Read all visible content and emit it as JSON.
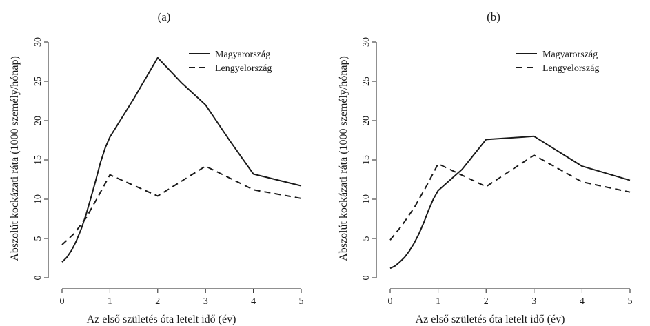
{
  "chart_data": [
    {
      "type": "line",
      "title": "(a)",
      "xlabel": "Az első születés óta letelt idő (év)",
      "ylabel": "Abszolút kockázati ráta  (1000 személy/hónap)",
      "xlim": [
        0,
        5
      ],
      "ylim": [
        0,
        30
      ],
      "xticks": [
        "0",
        "1",
        "2",
        "3",
        "4",
        "5"
      ],
      "yticks": [
        "0",
        "5",
        "10",
        "15",
        "20",
        "25",
        "30"
      ],
      "grid": false,
      "legend_position": "top-right",
      "series": [
        {
          "name": "Magyarország",
          "style": "solid",
          "x": [
            0,
            0.1,
            0.2,
            0.3,
            0.4,
            0.5,
            0.6,
            0.7,
            0.8,
            0.9,
            1,
            1.5,
            2,
            2.5,
            3,
            3.5,
            4,
            5
          ],
          "y": [
            2.0,
            2.6,
            3.5,
            4.7,
            6.2,
            8.0,
            10.1,
            12.3,
            14.6,
            16.5,
            17.9,
            22.8,
            28.0,
            24.8,
            22.0,
            17.5,
            13.2,
            11.7
          ]
        },
        {
          "name": "Lengyelország",
          "style": "dashed",
          "x": [
            0,
            0.25,
            0.5,
            0.75,
            1,
            2,
            3,
            4,
            5
          ],
          "y": [
            4.2,
            5.6,
            7.6,
            10.3,
            13.1,
            10.4,
            14.2,
            11.2,
            10.1
          ]
        }
      ]
    },
    {
      "type": "line",
      "title": "(b)",
      "xlabel": "Az első születés óta letelt idő (év)",
      "ylabel": "Abszolút kockázati ráta  (1000 személy/hónap)",
      "xlim": [
        0,
        5
      ],
      "ylim": [
        0,
        30
      ],
      "xticks": [
        "0",
        "1",
        "2",
        "3",
        "4",
        "5"
      ],
      "yticks": [
        "0",
        "5",
        "10",
        "15",
        "20",
        "25",
        "30"
      ],
      "grid": false,
      "legend_position": "top-right",
      "series": [
        {
          "name": "Magyarország",
          "style": "solid",
          "x": [
            0,
            0.1,
            0.2,
            0.3,
            0.4,
            0.5,
            0.6,
            0.7,
            0.8,
            0.9,
            1,
            1.5,
            2,
            3,
            4,
            5
          ],
          "y": [
            1.2,
            1.5,
            2.0,
            2.6,
            3.4,
            4.4,
            5.6,
            7.0,
            8.6,
            10.0,
            11.1,
            13.8,
            17.6,
            18.0,
            14.2,
            12.4
          ]
        },
        {
          "name": "Lengyelország",
          "style": "dashed",
          "x": [
            0,
            0.25,
            0.5,
            0.75,
            1,
            2,
            3,
            4,
            5
          ],
          "y": [
            4.8,
            6.7,
            8.9,
            11.6,
            14.5,
            11.6,
            15.6,
            12.2,
            10.9
          ]
        }
      ]
    }
  ]
}
